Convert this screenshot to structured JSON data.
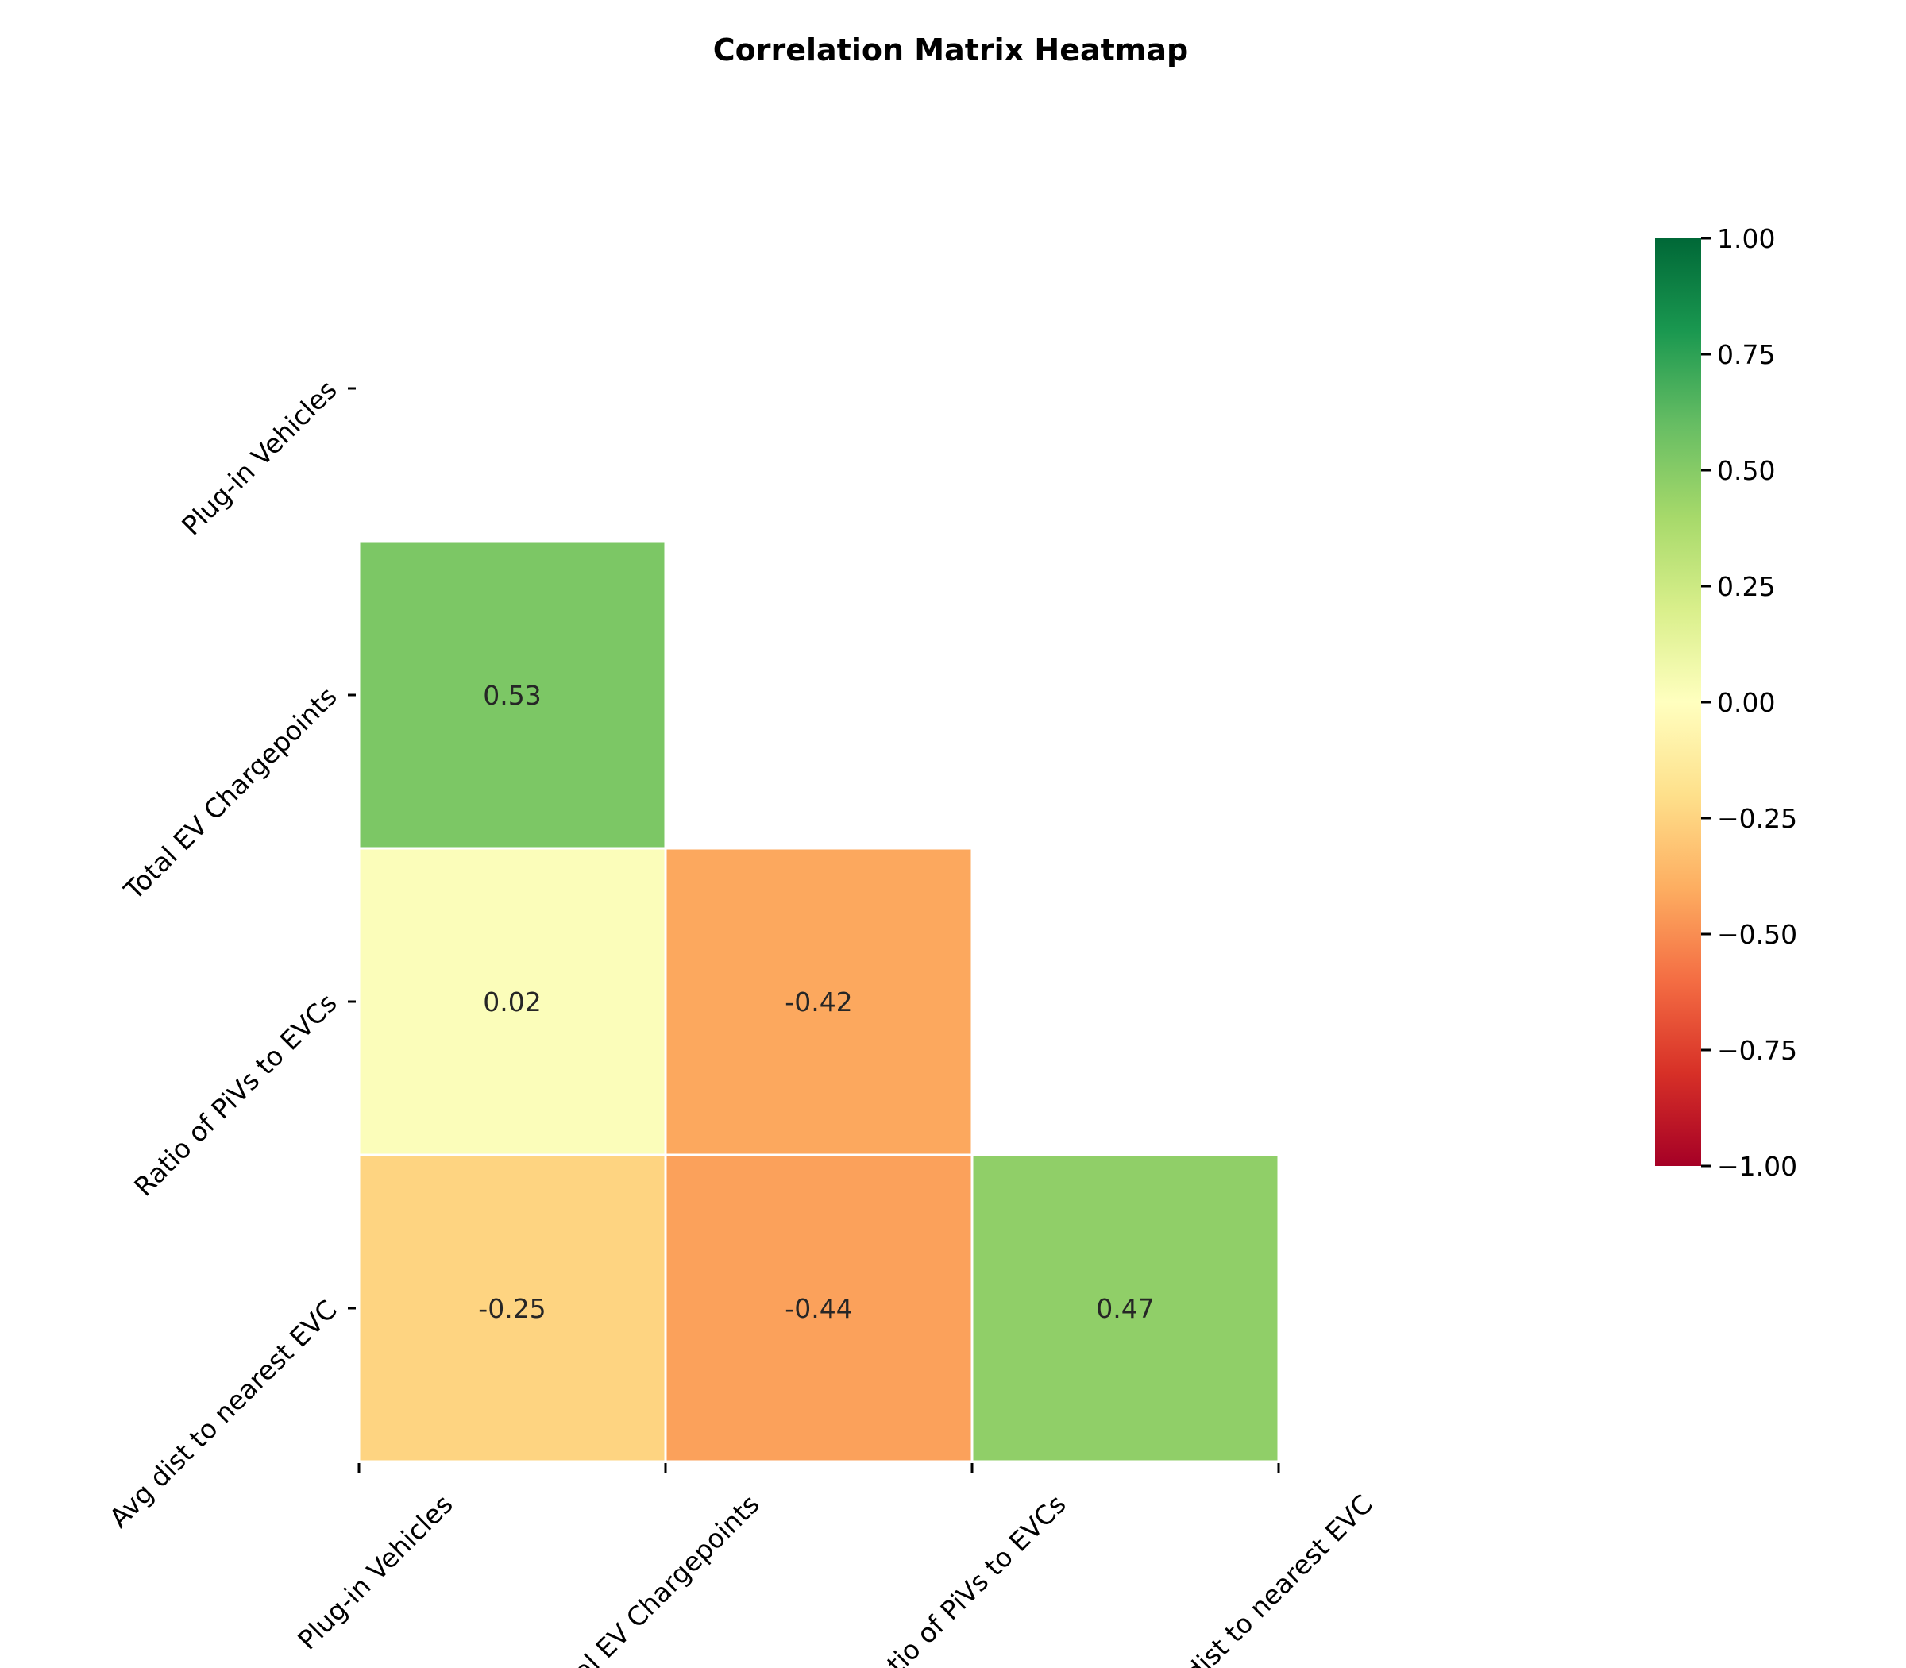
{
  "chart_data": {
    "type": "heatmap",
    "title": "Correlation Matrix Heatmap",
    "variables": [
      "Plug-in Vehicles",
      "Total EV Chargepoints",
      "Ratio of PiVs to EVCs",
      "Avg dist to nearest EVC"
    ],
    "mask": "upper-triangle-including-diagonal",
    "cells": [
      {
        "row": 1,
        "col": 0,
        "value": 0.53,
        "label": "0.53"
      },
      {
        "row": 2,
        "col": 0,
        "value": 0.02,
        "label": "0.02"
      },
      {
        "row": 2,
        "col": 1,
        "value": -0.42,
        "label": "-0.42"
      },
      {
        "row": 3,
        "col": 0,
        "value": -0.25,
        "label": "-0.25"
      },
      {
        "row": 3,
        "col": 1,
        "value": -0.44,
        "label": "-0.44"
      },
      {
        "row": 3,
        "col": 2,
        "value": 0.47,
        "label": "0.47"
      }
    ],
    "colorbar": {
      "colormap": "RdYlGn",
      "range": [
        -1,
        1
      ],
      "ticks": [
        1.0,
        0.75,
        0.5,
        0.25,
        0.0,
        -0.25,
        -0.5,
        -0.75,
        -1.0
      ],
      "tick_labels": [
        "1.00",
        "0.75",
        "0.50",
        "0.25",
        "0.00",
        "−0.25",
        "−0.50",
        "−0.75",
        "−1.00"
      ]
    },
    "colormap_stops": [
      "#a50026",
      "#d73027",
      "#f46d43",
      "#fdae61",
      "#fee08b",
      "#ffffbf",
      "#d9ef8b",
      "#a6d96a",
      "#66bd63",
      "#1a9850",
      "#006837"
    ]
  }
}
